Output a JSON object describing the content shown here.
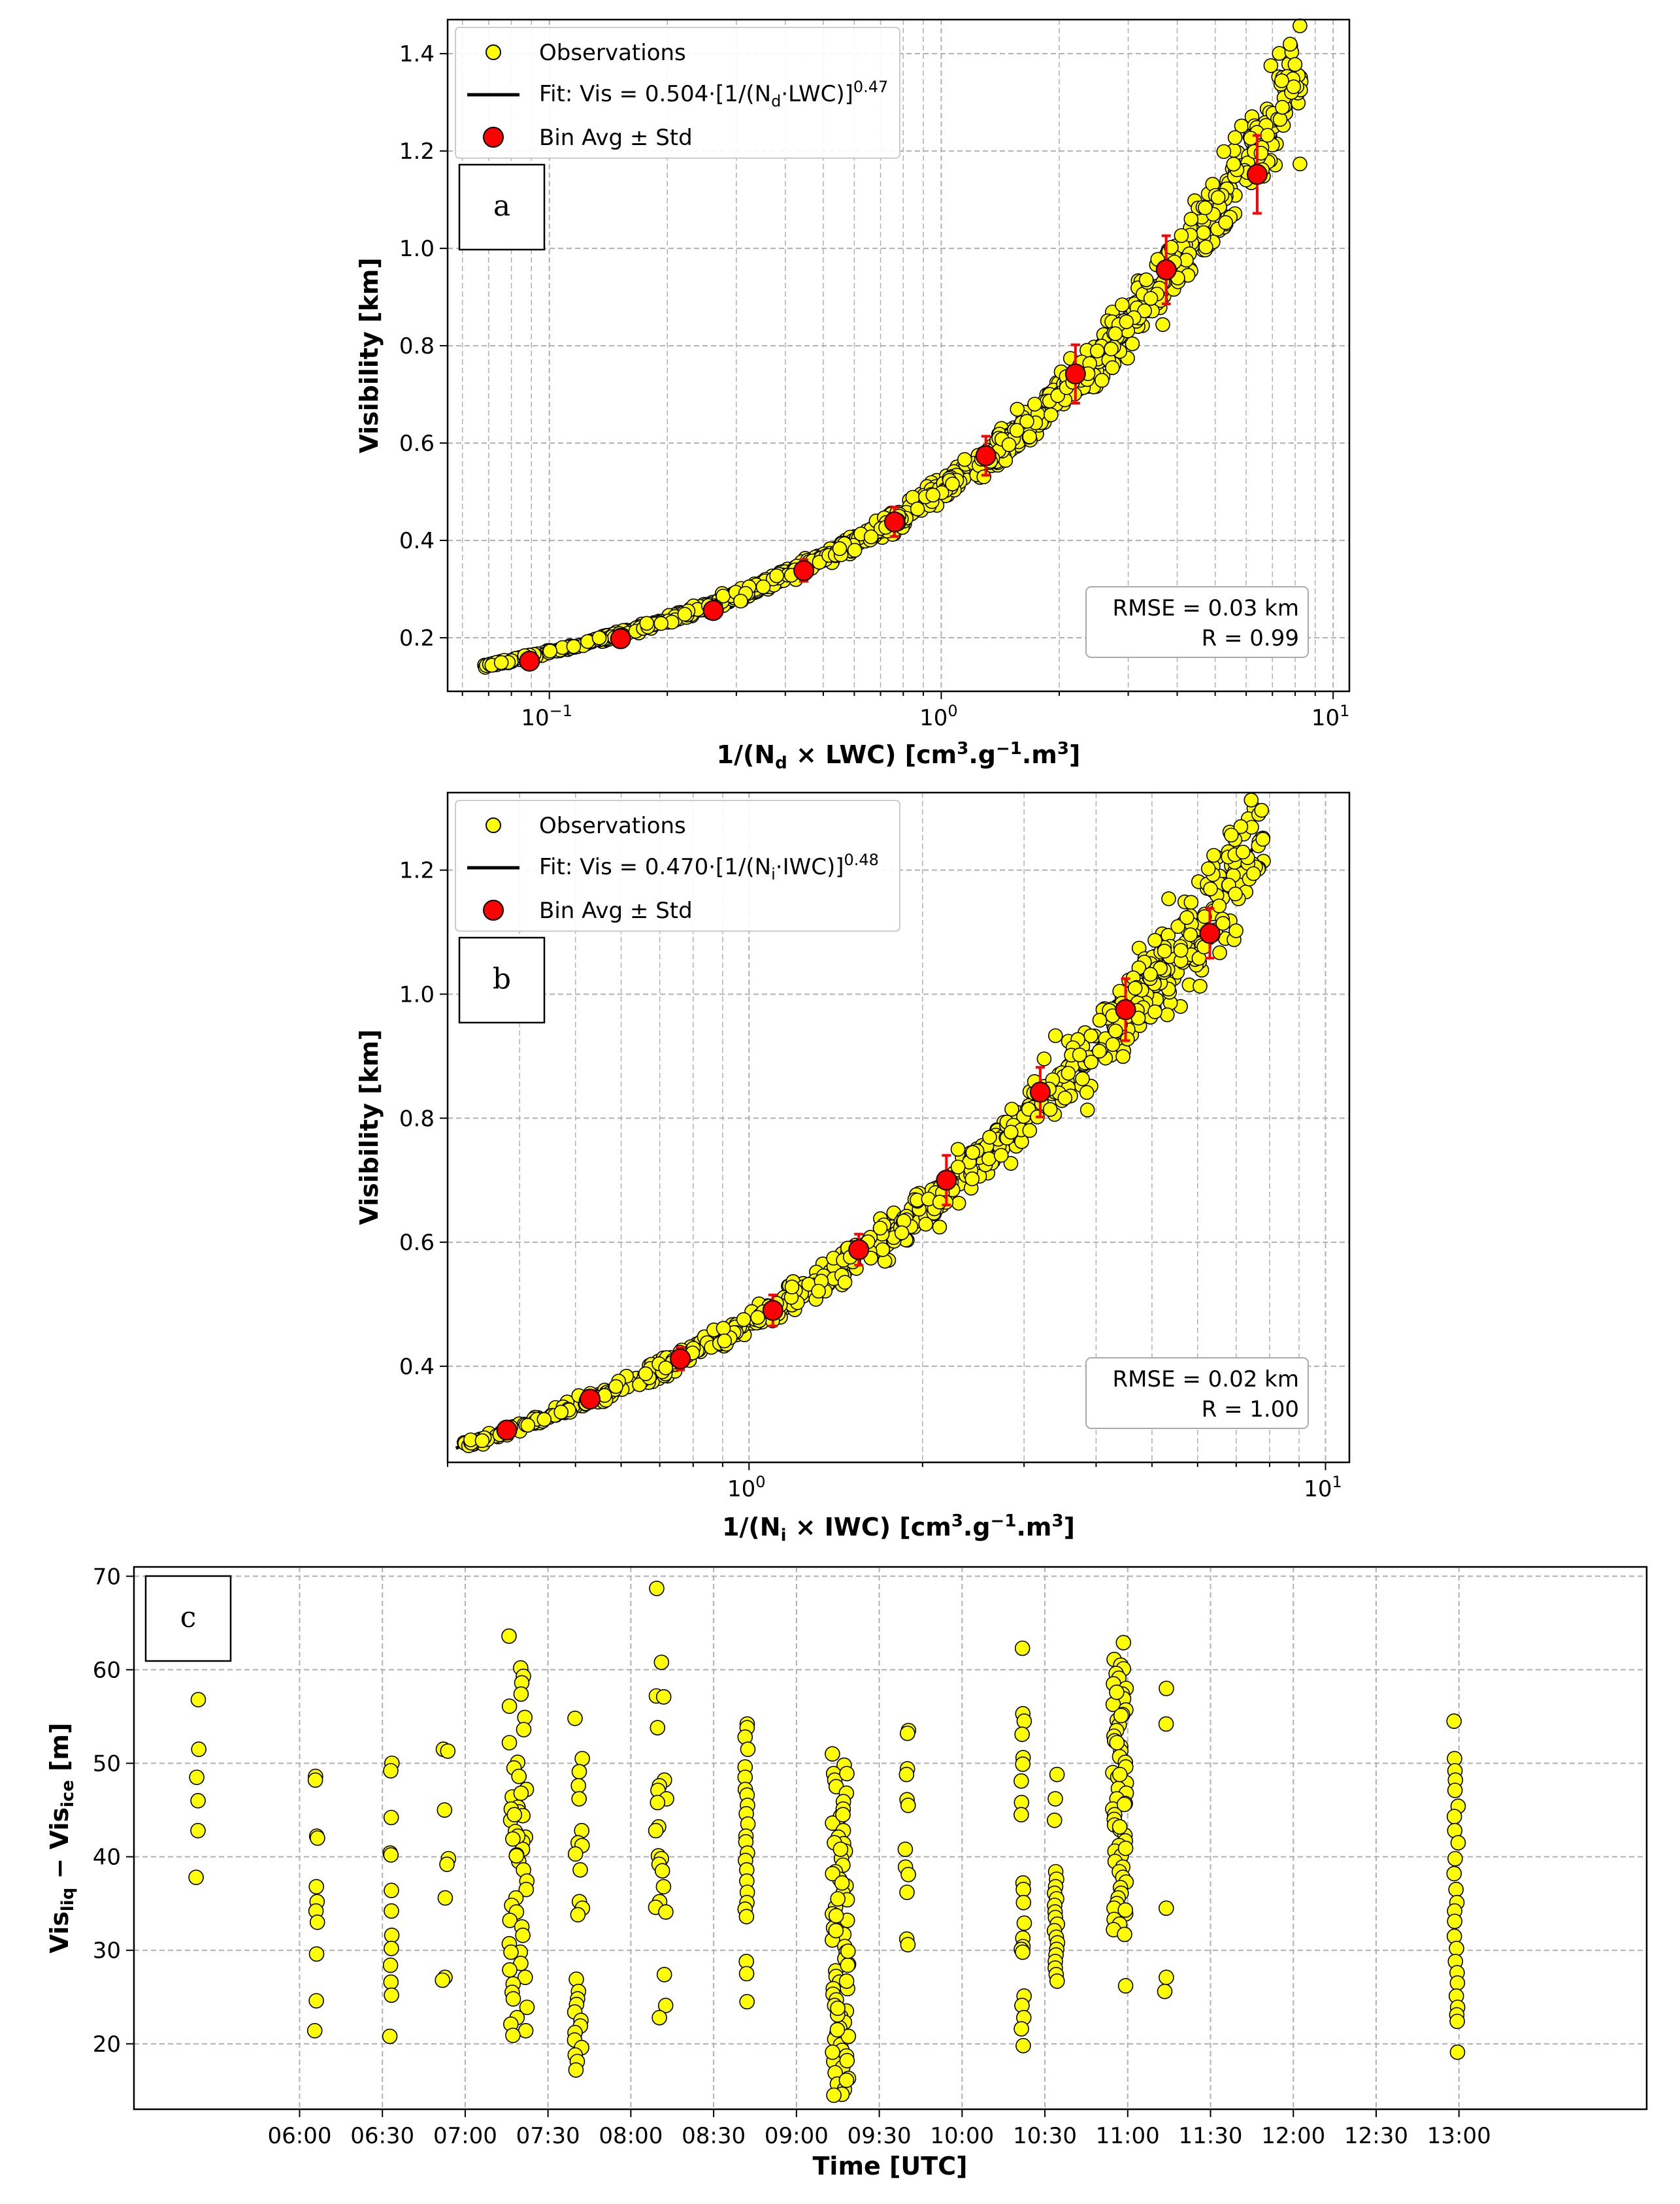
{
  "chart_data": [
    {
      "type": "scatter",
      "panel_label": "a",
      "title": "",
      "xlabel_parts": [
        "1/(N",
        "d",
        " × LWC) [cm",
        "3",
        ".g",
        "−1",
        ".m",
        "3",
        "]"
      ],
      "ylabel": "Visibility [km]",
      "xscale": "log",
      "xlim": [
        0.055,
        11
      ],
      "ylim": [
        0.09,
        1.47
      ],
      "xticks": [
        {
          "value": 0.1,
          "base": "10",
          "exp": "−1"
        },
        {
          "value": 1,
          "base": "10",
          "exp": "0"
        },
        {
          "value": 10,
          "base": "10",
          "exp": "1"
        }
      ],
      "yticks": [
        {
          "value": 0.2,
          "label": "0.2"
        },
        {
          "value": 0.4,
          "label": "0.4"
        },
        {
          "value": 0.6,
          "label": "0.6"
        },
        {
          "value": 0.8,
          "label": "0.8"
        },
        {
          "value": 1.0,
          "label": "1.0"
        },
        {
          "value": 1.2,
          "label": "1.2"
        },
        {
          "value": 1.4,
          "label": "1.4"
        }
      ],
      "grid": true,
      "legend": {
        "position": "top-left",
        "observations": "Observations",
        "fit_parts": [
          "Fit: Vis = 0.504·[1/(N",
          "d",
          "·LWC)]",
          "0.47"
        ],
        "bin": "Bin Avg ± Std"
      },
      "fit": {
        "coef": 0.504,
        "exp": 0.47,
        "x_range": [
          0.07,
          8.2
        ]
      },
      "observations_x_range": [
        0.068,
        8.3
      ],
      "bin_avg": [
        {
          "x": 0.089,
          "y": 0.152,
          "std": 0.008
        },
        {
          "x": 0.152,
          "y": 0.198,
          "std": 0.01
        },
        {
          "x": 0.262,
          "y": 0.256,
          "std": 0.012
        },
        {
          "x": 0.446,
          "y": 0.338,
          "std": 0.022
        },
        {
          "x": 0.76,
          "y": 0.438,
          "std": 0.03
        },
        {
          "x": 1.3,
          "y": 0.574,
          "std": 0.04
        },
        {
          "x": 2.2,
          "y": 0.742,
          "std": 0.06
        },
        {
          "x": 3.75,
          "y": 0.956,
          "std": 0.07
        },
        {
          "x": 6.4,
          "y": 1.152,
          "std": 0.08
        }
      ],
      "stats": {
        "rmse": "RMSE = 0.03 km",
        "r": "R = 0.99"
      },
      "colors": {
        "obs": "#ffff00",
        "fit": "#000000",
        "bin": "#ff0000",
        "err": "#ff0000"
      }
    },
    {
      "type": "scatter",
      "panel_label": "b",
      "title": "",
      "xlabel_parts": [
        "1/(N",
        "i",
        " × IWC) [cm",
        "3",
        ".g",
        "−1",
        ".m",
        "3",
        "]"
      ],
      "ylabel": "Visibility [km]",
      "xscale": "log",
      "xlim": [
        0.3,
        11
      ],
      "ylim": [
        0.245,
        1.325
      ],
      "xticks": [
        {
          "value": 1,
          "base": "10",
          "exp": "0"
        },
        {
          "value": 10,
          "base": "10",
          "exp": "1"
        }
      ],
      "yticks": [
        {
          "value": 0.4,
          "label": "0.4"
        },
        {
          "value": 0.6,
          "label": "0.6"
        },
        {
          "value": 0.8,
          "label": "0.8"
        },
        {
          "value": 1.0,
          "label": "1.0"
        },
        {
          "value": 1.2,
          "label": "1.2"
        }
      ],
      "grid": true,
      "legend": {
        "position": "top-left",
        "observations": "Observations",
        "fit_parts": [
          "Fit: Vis = 0.470·[1/(N",
          "i",
          "·IWC)]",
          "0.48"
        ],
        "bin": "Bin Avg ± Std"
      },
      "fit": {
        "coef": 0.47,
        "exp": 0.48,
        "x_range": [
          0.31,
          7.8
        ]
      },
      "observations_x_range": [
        0.31,
        7.9
      ],
      "bin_avg": [
        {
          "x": 0.38,
          "y": 0.297,
          "std": 0.008
        },
        {
          "x": 0.53,
          "y": 0.347,
          "std": 0.01
        },
        {
          "x": 0.76,
          "y": 0.412,
          "std": 0.018
        },
        {
          "x": 1.1,
          "y": 0.49,
          "std": 0.025
        },
        {
          "x": 1.55,
          "y": 0.588,
          "std": 0.025
        },
        {
          "x": 2.2,
          "y": 0.7,
          "std": 0.04
        },
        {
          "x": 3.2,
          "y": 0.842,
          "std": 0.04
        },
        {
          "x": 4.5,
          "y": 0.975,
          "std": 0.05
        },
        {
          "x": 6.3,
          "y": 1.098,
          "std": 0.04
        }
      ],
      "stats": {
        "rmse": "RMSE = 0.02 km",
        "r": "R = 1.00"
      },
      "colors": {
        "obs": "#ffff00",
        "fit": "#000000",
        "bin": "#ff0000",
        "err": "#ff0000"
      }
    },
    {
      "type": "scatter",
      "panel_label": "c",
      "title": "",
      "xlabel": "Time [UTC]",
      "ylabel_parts": [
        "Vis",
        "liq",
        " − Vis",
        "ice",
        " [m]"
      ],
      "xunit": "minutes since 00:00 UTC",
      "xlim": [
        300,
        848
      ],
      "ylim": [
        13,
        71
      ],
      "xticks": [
        {
          "value": 360,
          "label": "06:00"
        },
        {
          "value": 390,
          "label": "06:30"
        },
        {
          "value": 420,
          "label": "07:00"
        },
        {
          "value": 450,
          "label": "07:30"
        },
        {
          "value": 480,
          "label": "08:00"
        },
        {
          "value": 510,
          "label": "08:30"
        },
        {
          "value": 540,
          "label": "09:00"
        },
        {
          "value": 570,
          "label": "09:30"
        },
        {
          "value": 600,
          "label": "10:00"
        },
        {
          "value": 630,
          "label": "10:30"
        },
        {
          "value": 660,
          "label": "11:00"
        },
        {
          "value": 690,
          "label": "11:30"
        },
        {
          "value": 720,
          "label": "12:00"
        },
        {
          "value": 750,
          "label": "12:30"
        },
        {
          "value": 780,
          "label": "13:00"
        }
      ],
      "yticks": [
        {
          "value": 20,
          "label": "20"
        },
        {
          "value": 30,
          "label": "30"
        },
        {
          "value": 40,
          "label": "40"
        },
        {
          "value": 50,
          "label": "50"
        },
        {
          "value": 60,
          "label": "60"
        },
        {
          "value": 70,
          "label": "70"
        }
      ],
      "grid": true,
      "clusters": [
        {
          "t": 323,
          "spread": 0.5,
          "values": [
            56.8,
            51.5,
            48.5,
            46,
            42.8,
            37.8
          ]
        },
        {
          "t": 366,
          "spread": 0.5,
          "values": [
            48.6,
            48.2,
            42.2,
            42,
            36.8,
            35.2,
            34.2,
            33,
            29.6,
            24.6,
            21.4
          ]
        },
        {
          "t": 393,
          "spread": 0.5,
          "values": [
            50,
            49.2,
            44.2,
            40.4,
            40.2,
            36.4,
            34.2,
            31.6,
            30.2,
            28.4,
            26.6,
            25.2,
            20.8
          ]
        },
        {
          "t": 413,
          "spread": 1.5,
          "values": [
            51.5,
            51.3,
            45,
            39.8,
            39.2,
            35.6,
            27.1,
            26.8
          ]
        },
        {
          "t": 439,
          "spread": 3.5,
          "values": [
            63.6,
            60.2,
            59.3,
            58.6,
            57.4,
            56.1,
            54.9,
            53.6,
            52.2,
            50.1,
            49.5,
            48.6,
            47.2,
            46.4,
            45.3,
            44.8,
            44.4,
            43.9,
            42.7,
            42.1,
            41.6,
            40.8,
            40.2,
            39.5,
            38.6,
            37.4,
            36.5,
            35.6,
            34.8,
            34.1,
            33.2,
            32.5,
            31.6,
            30.7,
            29.8,
            28.6,
            27.9,
            27.1,
            26.4,
            25.5,
            24.8,
            23.9,
            22.8,
            22.1,
            21.4,
            20.9,
            45.1,
            46.8,
            44.5,
            42.2,
            41.9,
            40.1,
            29.8
          ]
        },
        {
          "t": 461,
          "spread": 1.5,
          "values": [
            54.8,
            50.5,
            49.1,
            47.6,
            46.2,
            42.8,
            41.5,
            41.2,
            40.3,
            38.6,
            35.2,
            34.5,
            33.8,
            26.9,
            25.6,
            24.8,
            24.2,
            23.4,
            22.5,
            21.9,
            21.2,
            20.4,
            19.6,
            18.8,
            18.1,
            17.2
          ]
        },
        {
          "t": 491,
          "spread": 2.0,
          "values": [
            68.7,
            60.8,
            57.2,
            57.1,
            53.8,
            48.2,
            47.6,
            47.1,
            46.2,
            45.8,
            43.2,
            42.8,
            40.1,
            39.8,
            39.2,
            38.5,
            36.8,
            35.2,
            34.6,
            34.1,
            27.4,
            24.1,
            22.8
          ]
        },
        {
          "t": 522,
          "spread": 0.6,
          "values": [
            54.2,
            53.8,
            52.8,
            51.5,
            49.6,
            48.5,
            47.2,
            46.6,
            45.5,
            44.6,
            43.5,
            42.2,
            41.6,
            40.4,
            39.6,
            38.6,
            37.4,
            36.2,
            35.1,
            34.4,
            33.6,
            28.8,
            27.5,
            24.5
          ]
        },
        {
          "t": 556,
          "spread": 3.0,
          "values": [
            49.8,
            48.9,
            48.2,
            47.5,
            46.8,
            45.9,
            45.1,
            44.3,
            43.6,
            42.8,
            42.1,
            41.4,
            40.6,
            39.8,
            39.1,
            38.4,
            37.6,
            36.9,
            36.1,
            35.4,
            34.6,
            33.9,
            33.2,
            32.4,
            31.7,
            31.1,
            30.4,
            29.8,
            29.1,
            28.5,
            27.8,
            27.2,
            26.6,
            25.9,
            25.3,
            24.7,
            24.1,
            23.5,
            22.9,
            22.3,
            21.7,
            21.1,
            20.5,
            19.9,
            19.3,
            18.7,
            18.1,
            17.5,
            16.9,
            16.3,
            15.7,
            15.1,
            14.6,
            14.5,
            51.0,
            41.5,
            38.2,
            35.5,
            32.1,
            28.4,
            25.9,
            23.1,
            20.8,
            18.2,
            16.1,
            48.9,
            44.5,
            40.8,
            37.2,
            33.7,
            29.9,
            26.7,
            23.8,
            21.5,
            19.1
          ]
        },
        {
          "t": 580,
          "spread": 0.6,
          "values": [
            53.5,
            53.2,
            49.4,
            48.8,
            46.1,
            45.5,
            40.8,
            38.9,
            38.1,
            36.2,
            31.2,
            30.6
          ]
        },
        {
          "t": 622,
          "spread": 0.6,
          "values": [
            62.3,
            55.3,
            54.5,
            53.1,
            50.6,
            49.9,
            48.1,
            45.8,
            44.5,
            37.2,
            36.5,
            35.1,
            32.9,
            31.3,
            30.4,
            30.1,
            29.8,
            25.1,
            24.1,
            22.8,
            21.6,
            19.8
          ]
        },
        {
          "t": 634,
          "spread": 0.6,
          "values": [
            48.8,
            46.2,
            43.9,
            38.4,
            37.6,
            36.8,
            36.1,
            35.5,
            34.8,
            34.1,
            33.5,
            32.8,
            32.1,
            31.4,
            30.8,
            30.1,
            29.5,
            28.8,
            28.1,
            27.4,
            26.7
          ]
        },
        {
          "t": 657,
          "spread": 2.5,
          "values": [
            62.9,
            61.1,
            60.5,
            60.1,
            59.6,
            59.1,
            58.5,
            58,
            57.4,
            56.9,
            56.3,
            55.7,
            55.2,
            54.6,
            54.1,
            53.5,
            52.9,
            52.4,
            51.8,
            51.3,
            50.7,
            50.1,
            49.6,
            49,
            48.5,
            47.9,
            47.3,
            46.8,
            46.2,
            45.7,
            45.1,
            44.5,
            44,
            43.4,
            42.9,
            42.3,
            41.7,
            41.2,
            40.6,
            40.1,
            39.5,
            38.9,
            38.4,
            37.8,
            37.3,
            36.7,
            36.1,
            35.6,
            35,
            34.5,
            33.9,
            33.3,
            32.8,
            32.2,
            31.7,
            26.2,
            34.3,
            57.6,
            55.1,
            52.2,
            48.8,
            45.6,
            43.2,
            40.9
          ]
        },
        {
          "t": 674,
          "spread": 0.6,
          "values": [
            58,
            54.2,
            34.5,
            27.1,
            25.6
          ]
        },
        {
          "t": 779,
          "spread": 0.8,
          "values": [
            54.5,
            50.5,
            49.2,
            48.2,
            47.1,
            45.4,
            44.3,
            42.8,
            41.5,
            39.8,
            38.2,
            36.5,
            35.1,
            34.2,
            33.1,
            31.5,
            30.2,
            28.8,
            27.6,
            26.5,
            25.1,
            23.9,
            23.1,
            22.4,
            19.1
          ]
        }
      ],
      "colors": {
        "obs": "#ffff00"
      }
    }
  ]
}
